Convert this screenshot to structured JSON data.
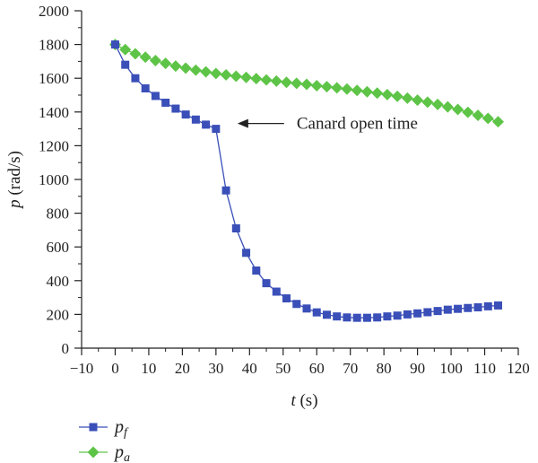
{
  "chart_data": {
    "type": "line",
    "xlabel": {
      "var": "t",
      "unit": " (s)"
    },
    "ylabel": {
      "var": "p",
      "unit": " (rad/s)"
    },
    "xlim": [
      -10,
      120
    ],
    "ylim": [
      0,
      2000
    ],
    "x_ticks": [
      -10,
      0,
      10,
      20,
      30,
      40,
      50,
      60,
      70,
      80,
      90,
      100,
      110,
      120
    ],
    "y_ticks": [
      0,
      200,
      400,
      600,
      800,
      1000,
      1200,
      1400,
      1600,
      1800,
      2000
    ],
    "grid": false,
    "legend_placement": "bottom-left",
    "annotation": {
      "text": "Canard open time",
      "x": 30,
      "y": 1300
    },
    "series": [
      {
        "name": "pf",
        "label_main": "p",
        "label_sub": "f",
        "color": "#3a4fb8",
        "marker": "square",
        "x": [
          0,
          3,
          6,
          9,
          12,
          15,
          18,
          21,
          24,
          27,
          30,
          33,
          36,
          39,
          42,
          45,
          48,
          51,
          54,
          57,
          60,
          63,
          66,
          69,
          72,
          75,
          78,
          81,
          84,
          87,
          90,
          93,
          96,
          99,
          102,
          105,
          108,
          111,
          114
        ],
        "y": [
          1800,
          1680,
          1600,
          1540,
          1495,
          1455,
          1420,
          1385,
          1355,
          1325,
          1300,
          935,
          710,
          565,
          460,
          385,
          335,
          295,
          262,
          235,
          212,
          198,
          188,
          182,
          180,
          180,
          182,
          188,
          193,
          200,
          206,
          213,
          220,
          228,
          233,
          238,
          242,
          248,
          253
        ]
      },
      {
        "name": "pa",
        "label_main": "p",
        "label_sub": "a",
        "color": "#5ec447",
        "marker": "diamond",
        "x": [
          0,
          3,
          6,
          9,
          12,
          15,
          18,
          21,
          24,
          27,
          30,
          33,
          36,
          39,
          42,
          45,
          48,
          51,
          54,
          57,
          60,
          63,
          66,
          69,
          72,
          75,
          78,
          81,
          84,
          87,
          90,
          93,
          96,
          99,
          102,
          105,
          108,
          111,
          114
        ],
        "y": [
          1800,
          1770,
          1745,
          1725,
          1705,
          1688,
          1672,
          1660,
          1648,
          1638,
          1628,
          1620,
          1612,
          1605,
          1598,
          1590,
          1583,
          1576,
          1570,
          1564,
          1556,
          1550,
          1543,
          1536,
          1528,
          1520,
          1512,
          1503,
          1493,
          1482,
          1470,
          1458,
          1445,
          1430,
          1415,
          1398,
          1380,
          1362,
          1342
        ]
      }
    ]
  }
}
